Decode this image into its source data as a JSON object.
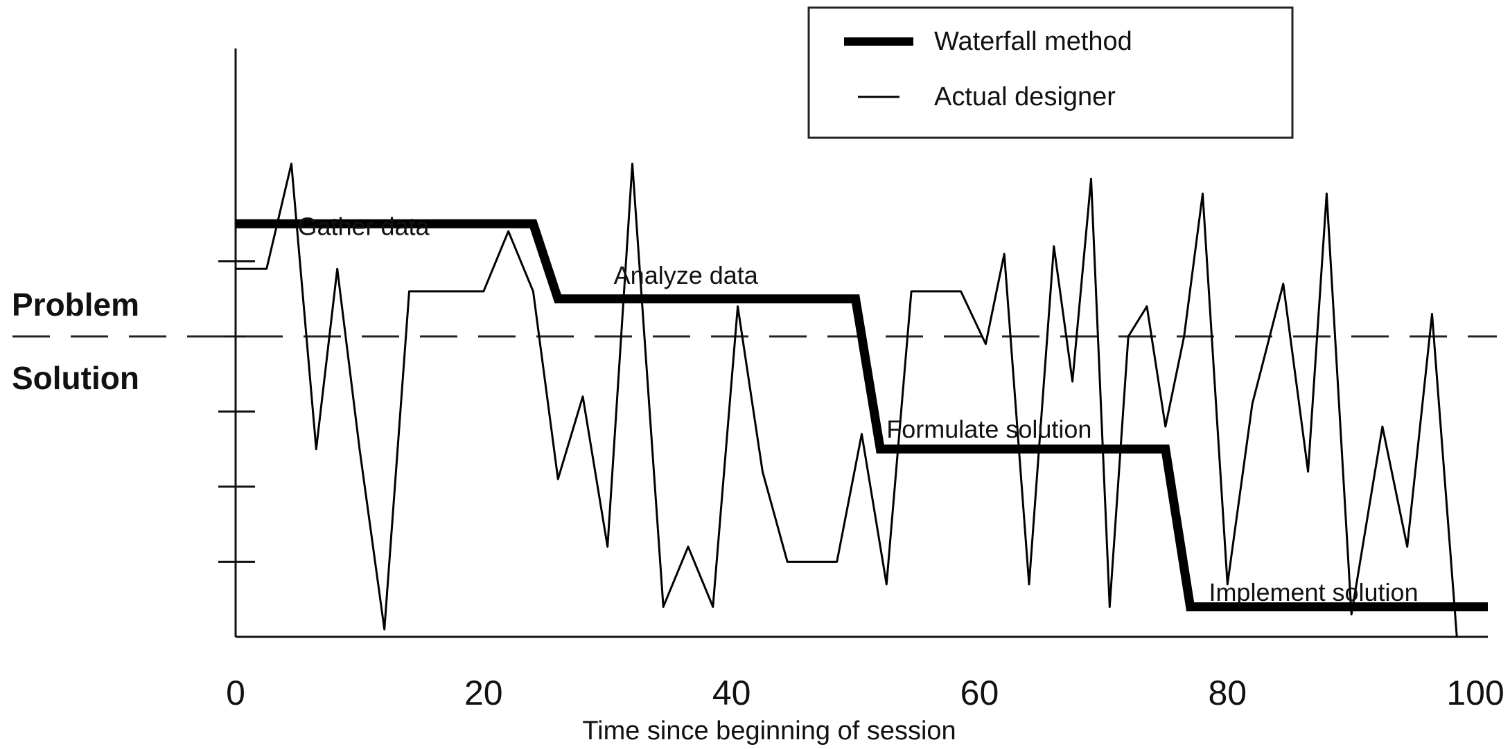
{
  "chart_data": {
    "type": "line",
    "xlabel": "Time since beginning of session",
    "ylabel": "",
    "xlim": [
      0,
      101
    ],
    "ylim": [
      0,
      5
    ],
    "x_ticks": [
      "0",
      "20",
      "40",
      "60",
      "80",
      "100"
    ],
    "x_tick_values": [
      0,
      20,
      40,
      60,
      80,
      100
    ],
    "y_tick_values": [
      1,
      2,
      3,
      4,
      5
    ],
    "divider": {
      "y": 4.0,
      "style": "dashed",
      "above_label": "Problem",
      "below_label": "Solution"
    },
    "legend": {
      "position": "top-right",
      "entries": [
        "Waterfall method",
        "Actual designer"
      ]
    },
    "stage_labels": [
      {
        "text": "Gather data",
        "x": 5,
        "y": 5.35
      },
      {
        "text": "Analyze data",
        "x": 30.5,
        "y": 4.7
      },
      {
        "text": "Formulate solution",
        "x": 52.5,
        "y": 2.65
      },
      {
        "text": "Implement solution",
        "x": 78.5,
        "y": 0.48
      }
    ],
    "series": [
      {
        "name": "Waterfall method",
        "style": "thick",
        "x": [
          0,
          24,
          26,
          50,
          52,
          75,
          77,
          101
        ],
        "y": [
          5.5,
          5.5,
          4.5,
          4.5,
          2.5,
          2.5,
          0.4,
          0.4
        ]
      },
      {
        "name": "Actual designer",
        "style": "thin",
        "x": [
          0,
          2.5,
          4.5,
          6.5,
          8.2,
          10,
          12,
          14,
          20,
          22,
          24,
          26,
          28,
          30,
          32,
          34.5,
          36.5,
          38.5,
          40.5,
          42.5,
          44.5,
          46.5,
          48.5,
          50.5,
          52.5,
          54.5,
          56.5,
          58.5,
          60.5,
          62,
          64,
          66,
          67.5,
          69,
          70.5,
          72,
          73.5,
          75,
          76.5,
          78,
          80,
          82,
          84.5,
          86.5,
          88,
          90,
          92.5,
          94.5,
          96.5,
          98.5
        ],
        "y": [
          4.9,
          4.9,
          6.3,
          2.5,
          4.9,
          2.5,
          0.1,
          4.6,
          4.6,
          5.4,
          4.6,
          2.1,
          3.2,
          1.2,
          6.3,
          0.4,
          1.2,
          0.4,
          4.4,
          2.2,
          1.0,
          1.0,
          1.0,
          2.7,
          0.7,
          4.6,
          4.6,
          4.6,
          3.9,
          5.1,
          0.7,
          5.2,
          3.4,
          6.1,
          0.4,
          4.0,
          4.4,
          2.8,
          4.0,
          5.9,
          0.7,
          3.1,
          4.7,
          2.2,
          5.9,
          0.3,
          2.8,
          1.2,
          4.3,
          0.0
        ]
      }
    ]
  }
}
